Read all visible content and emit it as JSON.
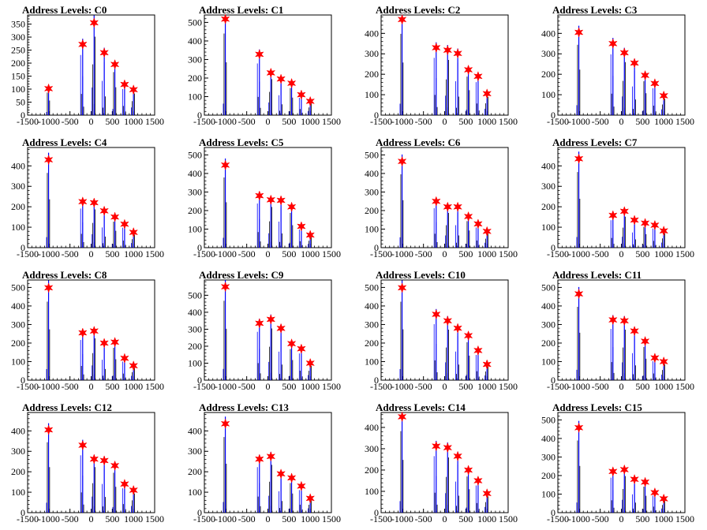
{
  "colors": {
    "histogram": "#0000ff",
    "marker": "#ff0000",
    "axis": "#000000"
  },
  "chart_data": [
    {
      "type": "histogram",
      "title": "Address Levels: C0",
      "ylim": [
        0,
        385
      ],
      "yticks": [
        0,
        50,
        100,
        150,
        200,
        250,
        300,
        350
      ],
      "xlim": [
        -1500,
        1500
      ],
      "xticks": [
        "-1500",
        "-1000",
        "-500",
        "0",
        "500",
        "1000",
        "1500"
      ],
      "levels": [
        {
          "x": -1005,
          "value": 102
        },
        {
          "x": -200,
          "value": 272
        },
        {
          "x": 70,
          "value": 355
        },
        {
          "x": 310,
          "value": 240
        },
        {
          "x": 560,
          "value": 195
        },
        {
          "x": 790,
          "value": 118
        },
        {
          "x": 1000,
          "value": 98
        }
      ]
    },
    {
      "type": "histogram",
      "title": "Address Levels: C1",
      "ylim": [
        0,
        540
      ],
      "yticks": [
        0,
        100,
        200,
        300,
        400,
        500
      ],
      "xlim": [
        -1500,
        1500
      ],
      "xticks": [
        "-1500",
        "-1000",
        "-500",
        "0",
        "500",
        "1000",
        "1500"
      ],
      "levels": [
        {
          "x": -1005,
          "value": 518
        },
        {
          "x": -200,
          "value": 328
        },
        {
          "x": 70,
          "value": 228
        },
        {
          "x": 310,
          "value": 195
        },
        {
          "x": 560,
          "value": 172
        },
        {
          "x": 790,
          "value": 110
        },
        {
          "x": 1000,
          "value": 75
        }
      ]
    },
    {
      "type": "histogram",
      "title": "Address Levels: C2",
      "ylim": [
        0,
        490
      ],
      "yticks": [
        0,
        100,
        200,
        300,
        400
      ],
      "xlim": [
        -1500,
        1500
      ],
      "xticks": [
        "-1500",
        "-1000",
        "-500",
        "0",
        "500",
        "1000",
        "1500"
      ],
      "levels": [
        {
          "x": -1005,
          "value": 468
        },
        {
          "x": -200,
          "value": 330
        },
        {
          "x": 70,
          "value": 318
        },
        {
          "x": 310,
          "value": 302
        },
        {
          "x": 560,
          "value": 222
        },
        {
          "x": 790,
          "value": 190
        },
        {
          "x": 1000,
          "value": 105
        }
      ]
    },
    {
      "type": "histogram",
      "title": "Address Levels: C3",
      "ylim": [
        0,
        490
      ],
      "yticks": [
        0,
        100,
        200,
        300,
        400
      ],
      "xlim": [
        -1500,
        1500
      ],
      "xticks": [
        "-1500",
        "-1000",
        "-500",
        "0",
        "500",
        "1000",
        "1500"
      ],
      "levels": [
        {
          "x": -1005,
          "value": 405
        },
        {
          "x": -200,
          "value": 350
        },
        {
          "x": 70,
          "value": 305
        },
        {
          "x": 310,
          "value": 255
        },
        {
          "x": 560,
          "value": 195
        },
        {
          "x": 790,
          "value": 155
        },
        {
          "x": 1000,
          "value": 95
        }
      ]
    },
    {
      "type": "histogram",
      "title": "Address Levels: C4",
      "ylim": [
        0,
        490
      ],
      "yticks": [
        0,
        100,
        200,
        300,
        400
      ],
      "xlim": [
        -1500,
        1500
      ],
      "xticks": [
        "-1500",
        "-1000",
        "-500",
        "0",
        "500",
        "1000",
        "1500"
      ],
      "levels": [
        {
          "x": -1005,
          "value": 430
        },
        {
          "x": -200,
          "value": 225
        },
        {
          "x": 70,
          "value": 220
        },
        {
          "x": 310,
          "value": 180
        },
        {
          "x": 560,
          "value": 150
        },
        {
          "x": 790,
          "value": 115
        },
        {
          "x": 1000,
          "value": 75
        }
      ]
    },
    {
      "type": "histogram",
      "title": "Address Levels: C5",
      "ylim": [
        0,
        540
      ],
      "yticks": [
        0,
        100,
        200,
        300,
        400,
        500
      ],
      "xlim": [
        -1500,
        1500
      ],
      "xticks": [
        "-1500",
        "-1000",
        "-500",
        "0",
        "500",
        "1000",
        "1500"
      ],
      "levels": [
        {
          "x": -1005,
          "value": 445
        },
        {
          "x": -200,
          "value": 280
        },
        {
          "x": 70,
          "value": 258
        },
        {
          "x": 310,
          "value": 255
        },
        {
          "x": 560,
          "value": 220
        },
        {
          "x": 790,
          "value": 115
        },
        {
          "x": 1000,
          "value": 68
        }
      ]
    },
    {
      "type": "histogram",
      "title": "Address Levels: C6",
      "ylim": [
        0,
        540
      ],
      "yticks": [
        0,
        100,
        200,
        300,
        400,
        500
      ],
      "xlim": [
        -1500,
        1500
      ],
      "xticks": [
        "-1500",
        "-1000",
        "-500",
        "0",
        "500",
        "1000",
        "1500"
      ],
      "levels": [
        {
          "x": -1005,
          "value": 465
        },
        {
          "x": -200,
          "value": 250
        },
        {
          "x": 70,
          "value": 220
        },
        {
          "x": 310,
          "value": 220
        },
        {
          "x": 560,
          "value": 168
        },
        {
          "x": 790,
          "value": 128
        },
        {
          "x": 1000,
          "value": 88
        }
      ]
    },
    {
      "type": "histogram",
      "title": "Address Levels: C7",
      "ylim": [
        0,
        490
      ],
      "yticks": [
        0,
        100,
        200,
        300,
        400
      ],
      "xlim": [
        -1500,
        1500
      ],
      "xticks": [
        "-1500",
        "-1000",
        "-500",
        "0",
        "500",
        "1000",
        "1500"
      ],
      "levels": [
        {
          "x": -1005,
          "value": 435
        },
        {
          "x": -200,
          "value": 158
        },
        {
          "x": 70,
          "value": 178
        },
        {
          "x": 310,
          "value": 135
        },
        {
          "x": 560,
          "value": 120
        },
        {
          "x": 790,
          "value": 110
        },
        {
          "x": 1000,
          "value": 82
        }
      ]
    },
    {
      "type": "histogram",
      "title": "Address Levels: C8",
      "ylim": [
        0,
        540
      ],
      "yticks": [
        0,
        100,
        200,
        300,
        400,
        500
      ],
      "xlim": [
        -1500,
        1500
      ],
      "xticks": [
        "-1500",
        "-1000",
        "-500",
        "0",
        "500",
        "1000",
        "1500"
      ],
      "levels": [
        {
          "x": -1005,
          "value": 498
        },
        {
          "x": -200,
          "value": 255
        },
        {
          "x": 70,
          "value": 265
        },
        {
          "x": 310,
          "value": 200
        },
        {
          "x": 560,
          "value": 205
        },
        {
          "x": 790,
          "value": 118
        },
        {
          "x": 1000,
          "value": 78
        }
      ]
    },
    {
      "type": "histogram",
      "title": "Address Levels: C9",
      "ylim": [
        0,
        590
      ],
      "yticks": [
        0,
        100,
        200,
        300,
        400,
        500
      ],
      "xlim": [
        -1500,
        1500
      ],
      "xticks": [
        "-1500",
        "-1000",
        "-500",
        "0",
        "500",
        "1000",
        "1500"
      ],
      "levels": [
        {
          "x": -1005,
          "value": 550
        },
        {
          "x": -200,
          "value": 335
        },
        {
          "x": 70,
          "value": 358
        },
        {
          "x": 310,
          "value": 305
        },
        {
          "x": 560,
          "value": 215
        },
        {
          "x": 790,
          "value": 185
        },
        {
          "x": 1000,
          "value": 100
        }
      ]
    },
    {
      "type": "histogram",
      "title": "Address Levels: C10",
      "ylim": [
        0,
        540
      ],
      "yticks": [
        0,
        100,
        200,
        300,
        400,
        500
      ],
      "xlim": [
        -1500,
        1500
      ],
      "xticks": [
        "-1500",
        "-1000",
        "-500",
        "0",
        "500",
        "1000",
        "1500"
      ],
      "levels": [
        {
          "x": -1005,
          "value": 498
        },
        {
          "x": -200,
          "value": 355
        },
        {
          "x": 70,
          "value": 320
        },
        {
          "x": 310,
          "value": 280
        },
        {
          "x": 560,
          "value": 240
        },
        {
          "x": 790,
          "value": 160
        },
        {
          "x": 1000,
          "value": 85
        }
      ]
    },
    {
      "type": "histogram",
      "title": "Address Levels: C11",
      "ylim": [
        0,
        540
      ],
      "yticks": [
        0,
        100,
        200,
        300,
        400,
        500
      ],
      "xlim": [
        -1500,
        1500
      ],
      "xticks": [
        "-1500",
        "-1000",
        "-500",
        "0",
        "500",
        "1000",
        "1500"
      ],
      "levels": [
        {
          "x": -1005,
          "value": 465
        },
        {
          "x": -200,
          "value": 325
        },
        {
          "x": 70,
          "value": 320
        },
        {
          "x": 310,
          "value": 265
        },
        {
          "x": 560,
          "value": 210
        },
        {
          "x": 790,
          "value": 120
        },
        {
          "x": 1000,
          "value": 100
        }
      ]
    },
    {
      "type": "histogram",
      "title": "Address Levels: C12",
      "ylim": [
        0,
        490
      ],
      "yticks": [
        0,
        100,
        200,
        300,
        400
      ],
      "xlim": [
        -1500,
        1500
      ],
      "xticks": [
        "-1500",
        "-1000",
        "-500",
        "0",
        "500",
        "1000",
        "1500"
      ],
      "levels": [
        {
          "x": -1005,
          "value": 405
        },
        {
          "x": -200,
          "value": 330
        },
        {
          "x": 70,
          "value": 262
        },
        {
          "x": 310,
          "value": 255
        },
        {
          "x": 560,
          "value": 230
        },
        {
          "x": 790,
          "value": 140
        },
        {
          "x": 1000,
          "value": 110
        }
      ]
    },
    {
      "type": "histogram",
      "title": "Address Levels: C13",
      "ylim": [
        0,
        490
      ],
      "yticks": [
        0,
        100,
        200,
        300,
        400
      ],
      "xlim": [
        -1500,
        1500
      ],
      "xticks": [
        "-1500",
        "-1000",
        "-500",
        "0",
        "500",
        "1000",
        "1500"
      ],
      "levels": [
        {
          "x": -1005,
          "value": 435
        },
        {
          "x": -200,
          "value": 262
        },
        {
          "x": 70,
          "value": 275
        },
        {
          "x": 310,
          "value": 190
        },
        {
          "x": 560,
          "value": 170
        },
        {
          "x": 790,
          "value": 130
        },
        {
          "x": 1000,
          "value": 70
        }
      ]
    },
    {
      "type": "histogram",
      "title": "Address Levels: C14",
      "ylim": [
        0,
        470
      ],
      "yticks": [
        0,
        100,
        200,
        300,
        400
      ],
      "xlim": [
        -1500,
        1500
      ],
      "xticks": [
        "-1500",
        "-1000",
        "-500",
        "0",
        "500",
        "1000",
        "1500"
      ],
      "levels": [
        {
          "x": -1005,
          "value": 450
        },
        {
          "x": -200,
          "value": 312
        },
        {
          "x": 70,
          "value": 305
        },
        {
          "x": 310,
          "value": 265
        },
        {
          "x": 560,
          "value": 200
        },
        {
          "x": 790,
          "value": 150
        },
        {
          "x": 1000,
          "value": 90
        }
      ]
    },
    {
      "type": "histogram",
      "title": "Address Levels: C15",
      "ylim": [
        0,
        540
      ],
      "yticks": [
        0,
        100,
        200,
        300,
        400,
        500
      ],
      "xlim": [
        -1500,
        1500
      ],
      "xticks": [
        "-1500",
        "-1000",
        "-500",
        "0",
        "500",
        "1000",
        "1500"
      ],
      "levels": [
        {
          "x": -1005,
          "value": 458
        },
        {
          "x": -200,
          "value": 222
        },
        {
          "x": 70,
          "value": 232
        },
        {
          "x": 310,
          "value": 180
        },
        {
          "x": 560,
          "value": 165
        },
        {
          "x": 790,
          "value": 108
        },
        {
          "x": 1000,
          "value": 75
        }
      ]
    }
  ]
}
